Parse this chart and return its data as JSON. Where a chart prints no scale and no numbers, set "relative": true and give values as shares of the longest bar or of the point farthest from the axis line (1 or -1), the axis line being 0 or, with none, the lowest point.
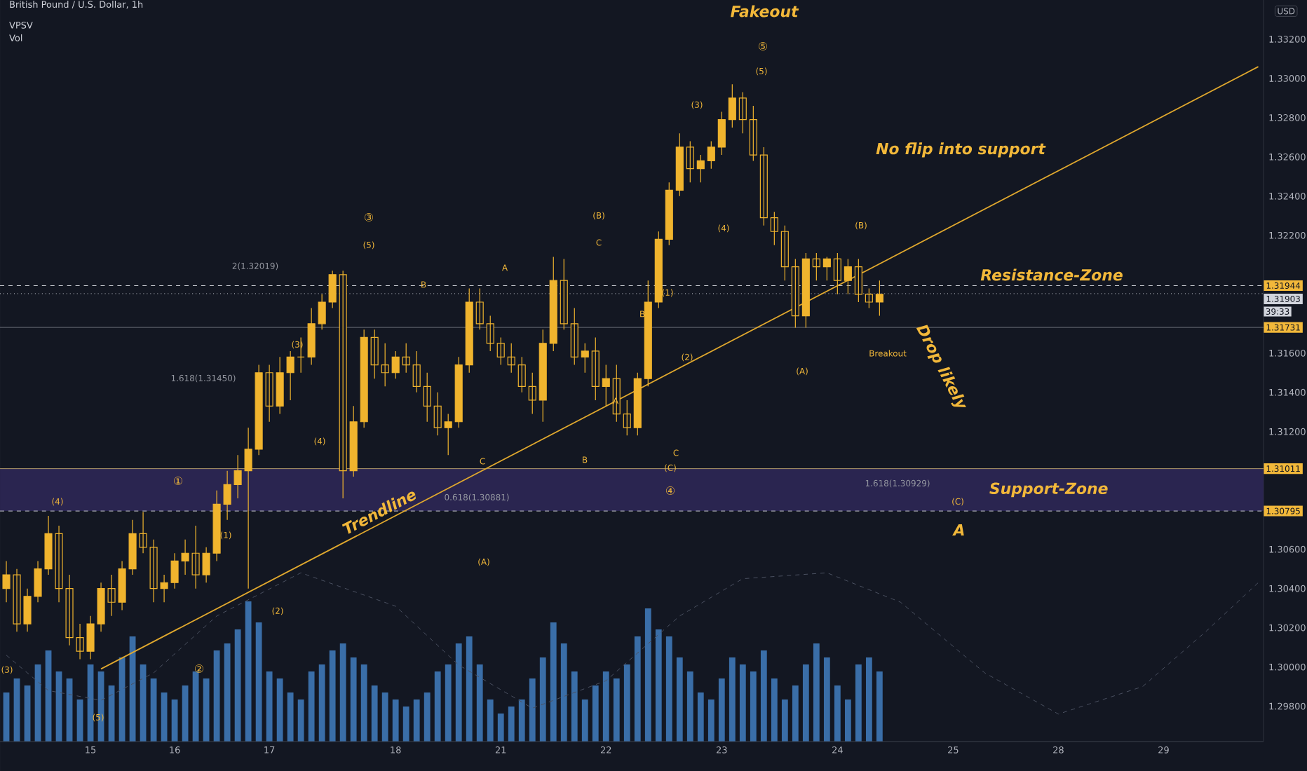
{
  "chart_data": [
    {
      "type": "candlestick",
      "title": "British Pound / U.S. Dollar, 1h",
      "ylabel": "USD",
      "color": "#f0b42e",
      "categories": [
        null,
        null,
        null,
        null,
        null,
        null,
        null,
        null,
        "15",
        null,
        null,
        null,
        null,
        null,
        null,
        null,
        "16",
        null,
        null,
        null,
        null,
        null,
        null,
        null,
        null,
        "17",
        null,
        null,
        null,
        null,
        null,
        null,
        null,
        null,
        null,
        null,
        null,
        "18",
        null,
        null,
        null,
        null,
        null,
        null,
        null,
        null,
        null,
        "21",
        null,
        null,
        null,
        null,
        null,
        null,
        null,
        null,
        null,
        "22",
        null,
        null,
        null,
        null,
        null,
        null,
        null,
        null,
        null,
        null,
        "23",
        null,
        null,
        null,
        null,
        null,
        null,
        null,
        null,
        null,
        null,
        "24",
        null,
        null,
        null,
        null,
        null,
        null,
        null,
        null,
        null,
        null,
        "25",
        null,
        null,
        null,
        null,
        null,
        null,
        null,
        null,
        null,
        "28",
        null,
        null,
        null,
        null,
        null,
        null,
        null,
        null,
        null,
        "29",
        null,
        null,
        null,
        null,
        null,
        null,
        null,
        null,
        null
      ],
      "ohlc": [
        [
          1.304,
          1.3054,
          1.3033,
          1.3047
        ],
        [
          1.3047,
          1.305,
          1.3018,
          1.3022
        ],
        [
          1.3022,
          1.304,
          1.3018,
          1.3036
        ],
        [
          1.3036,
          1.3054,
          1.3033,
          1.305
        ],
        [
          1.305,
          1.3077,
          1.3047,
          1.3068
        ],
        [
          1.3068,
          1.3072,
          1.3033,
          1.304
        ],
        [
          1.304,
          1.3047,
          1.3011,
          1.3015
        ],
        [
          1.3015,
          1.3022,
          1.3004,
          1.3008
        ],
        [
          1.3008,
          1.3026,
          1.3004,
          1.3022
        ],
        [
          1.3022,
          1.3043,
          1.3018,
          1.304
        ],
        [
          1.304,
          1.3047,
          1.3026,
          1.3033
        ],
        [
          1.3033,
          1.3054,
          1.3029,
          1.305
        ],
        [
          1.305,
          1.3075,
          1.3047,
          1.3068
        ],
        [
          1.3068,
          1.3079,
          1.3058,
          1.3061
        ],
        [
          1.3061,
          1.3065,
          1.3033,
          1.304
        ],
        [
          1.304,
          1.3047,
          1.3033,
          1.3043
        ],
        [
          1.3043,
          1.3058,
          1.304,
          1.3054
        ],
        [
          1.3054,
          1.3065,
          1.3047,
          1.3058
        ],
        [
          1.3058,
          1.3072,
          1.304,
          1.3047
        ],
        [
          1.3047,
          1.3061,
          1.3043,
          1.3058
        ],
        [
          1.3058,
          1.309,
          1.3054,
          1.3083
        ],
        [
          1.3083,
          1.31,
          1.3075,
          1.3093
        ],
        [
          1.3093,
          1.3108,
          1.3086,
          1.31
        ],
        [
          1.31,
          1.3122,
          1.304,
          1.3111
        ],
        [
          1.3111,
          1.3154,
          1.3108,
          1.315
        ],
        [
          1.315,
          1.3154,
          1.3125,
          1.3133
        ],
        [
          1.3133,
          1.3158,
          1.3129,
          1.315
        ],
        [
          1.315,
          1.3161,
          1.3136,
          1.3158
        ],
        [
          1.3158,
          1.3168,
          1.315,
          1.3158
        ],
        [
          1.3158,
          1.3183,
          1.3154,
          1.3175
        ],
        [
          1.3175,
          1.319,
          1.3172,
          1.3186
        ],
        [
          1.3186,
          1.3202,
          1.3183,
          1.32
        ],
        [
          1.32,
          1.3202,
          1.3086,
          1.31
        ],
        [
          1.31,
          1.3133,
          1.3097,
          1.3125
        ],
        [
          1.3125,
          1.3172,
          1.3122,
          1.3168
        ],
        [
          1.3168,
          1.3172,
          1.3147,
          1.3154
        ],
        [
          1.3154,
          1.3165,
          1.3143,
          1.315
        ],
        [
          1.315,
          1.3161,
          1.3147,
          1.3158
        ],
        [
          1.3158,
          1.3165,
          1.315,
          1.3154
        ],
        [
          1.3154,
          1.3161,
          1.314,
          1.3143
        ],
        [
          1.3143,
          1.315,
          1.3125,
          1.3133
        ],
        [
          1.3133,
          1.314,
          1.3118,
          1.3122
        ],
        [
          1.3122,
          1.3129,
          1.3108,
          1.3125
        ],
        [
          1.3125,
          1.3158,
          1.3122,
          1.3154
        ],
        [
          1.3154,
          1.3193,
          1.315,
          1.3186
        ],
        [
          1.3186,
          1.3193,
          1.3172,
          1.3175
        ],
        [
          1.3175,
          1.3179,
          1.3161,
          1.3165
        ],
        [
          1.3165,
          1.3168,
          1.3154,
          1.3158
        ],
        [
          1.3158,
          1.3165,
          1.315,
          1.3154
        ],
        [
          1.3154,
          1.3158,
          1.314,
          1.3143
        ],
        [
          1.3143,
          1.315,
          1.3129,
          1.3136
        ],
        [
          1.3136,
          1.3172,
          1.3125,
          1.3165
        ],
        [
          1.3165,
          1.3209,
          1.3161,
          1.3197
        ],
        [
          1.3197,
          1.3208,
          1.3172,
          1.3175
        ],
        [
          1.3175,
          1.3183,
          1.3154,
          1.3158
        ],
        [
          1.3158,
          1.3165,
          1.315,
          1.3161
        ],
        [
          1.3161,
          1.3168,
          1.3136,
          1.3143
        ],
        [
          1.3143,
          1.3154,
          1.3133,
          1.3147
        ],
        [
          1.3147,
          1.3154,
          1.3125,
          1.3129
        ],
        [
          1.3129,
          1.3136,
          1.3118,
          1.3122
        ],
        [
          1.3122,
          1.315,
          1.3118,
          1.3147
        ],
        [
          1.3147,
          1.3197,
          1.3143,
          1.3186
        ],
        [
          1.3186,
          1.3222,
          1.3183,
          1.3218
        ],
        [
          1.3218,
          1.3247,
          1.3215,
          1.3243
        ],
        [
          1.3243,
          1.3272,
          1.324,
          1.3265
        ],
        [
          1.3265,
          1.3268,
          1.3247,
          1.3254
        ],
        [
          1.3254,
          1.3261,
          1.3247,
          1.3258
        ],
        [
          1.3258,
          1.3268,
          1.3254,
          1.3265
        ],
        [
          1.3265,
          1.3283,
          1.3261,
          1.3279
        ],
        [
          1.3279,
          1.3297,
          1.3275,
          1.329
        ],
        [
          1.329,
          1.3293,
          1.3272,
          1.3279
        ],
        [
          1.3279,
          1.3286,
          1.3258,
          1.3261
        ],
        [
          1.3261,
          1.3265,
          1.3225,
          1.3229
        ],
        [
          1.3229,
          1.3232,
          1.3215,
          1.3222
        ],
        [
          1.3222,
          1.3225,
          1.3197,
          1.3204
        ],
        [
          1.3204,
          1.3208,
          1.3173,
          1.3179
        ],
        [
          1.3179,
          1.3211,
          1.3173,
          1.3208
        ],
        [
          1.3208,
          1.3211,
          1.3197,
          1.3204
        ],
        [
          1.3204,
          1.3209,
          1.3197,
          1.3208
        ],
        [
          1.3208,
          1.3211,
          1.319,
          1.3197
        ],
        [
          1.3197,
          1.3208,
          1.319,
          1.3204
        ],
        [
          1.3204,
          1.3208,
          1.3186,
          1.319
        ],
        [
          1.319,
          1.3193,
          1.3183,
          1.3186
        ],
        [
          1.3186,
          1.3197,
          1.3179,
          1.319
        ],
        null,
        null,
        null,
        null,
        null,
        null,
        null,
        null,
        null,
        null,
        null,
        null,
        null,
        null,
        null,
        null,
        null,
        null,
        null,
        null,
        null,
        null,
        null,
        null,
        null,
        null,
        null,
        null,
        null,
        null,
        null,
        null,
        null,
        null,
        null,
        null
      ],
      "ylim": [
        1.2962,
        1.334
      ],
      "yticks": [
        {
          "value": 1.298,
          "label": "1.29800"
        },
        {
          "value": 1.3,
          "label": "1.30000"
        },
        {
          "value": 1.302,
          "label": "1.30200"
        },
        {
          "value": 1.304,
          "label": "1.30400"
        },
        {
          "value": 1.306,
          "label": "1.30600"
        },
        {
          "value": 1.312,
          "label": "1.31200"
        },
        {
          "value": 1.314,
          "label": "1.31400"
        },
        {
          "value": 1.316,
          "label": "1.31600"
        },
        {
          "value": 1.322,
          "label": "1.32200"
        },
        {
          "value": 1.324,
          "label": "1.32400"
        },
        {
          "value": 1.326,
          "label": "1.32600"
        },
        {
          "value": 1.328,
          "label": "1.32800"
        },
        {
          "value": 1.33,
          "label": "1.33000"
        },
        {
          "value": 1.332,
          "label": "1.33200"
        }
      ],
      "series": [
        {
          "type": "line",
          "name": "Trendline",
          "color": "#e0a82e",
          "values": [
            null,
            null,
            null,
            null,
            null,
            null,
            null,
            null,
            null,
            1.2999,
            null,
            null,
            null,
            null,
            null,
            null,
            null,
            null,
            null,
            null,
            null,
            null,
            null,
            null,
            null,
            null,
            null,
            null,
            null,
            null,
            null,
            null,
            null,
            null,
            null,
            null,
            null,
            null,
            null,
            null,
            null,
            null,
            null,
            null,
            null,
            null,
            null,
            null,
            null,
            null,
            null,
            null,
            null,
            null,
            null,
            null,
            null,
            null,
            null,
            null,
            null,
            null,
            null,
            null,
            null,
            null,
            null,
            null,
            null,
            null,
            null,
            null,
            null,
            null,
            null,
            null,
            null,
            null,
            null,
            null,
            null,
            null,
            null,
            null,
            null,
            null,
            null,
            null,
            null,
            null,
            null,
            null,
            null,
            null,
            null,
            null,
            null,
            null,
            null,
            null,
            null,
            null,
            null,
            null,
            null,
            null,
            null,
            null,
            null,
            null,
            null,
            null,
            null,
            null,
            null,
            null,
            null,
            null,
            null,
            1.3306
          ]
        },
        {
          "type": "line",
          "line_style": "dashed",
          "color": "#4a5060",
          "values": [
            1.3006,
            null,
            null,
            null,
            1.2988,
            null,
            null,
            null,
            null,
            1.2983,
            null,
            null,
            null,
            null,
            1.2997,
            null,
            null,
            null,
            null,
            null,
            1.3026,
            null,
            null,
            null,
            null,
            null,
            null,
            null,
            1.3048,
            null,
            null,
            null,
            null,
            null,
            null,
            null,
            null,
            1.3031,
            null,
            null,
            null,
            null,
            null,
            1.3001,
            null,
            null,
            null,
            null,
            null,
            null,
            1.2979,
            null,
            null,
            null,
            null,
            null,
            null,
            1.2993,
            null,
            null,
            null,
            null,
            null,
            null,
            1.3026,
            null,
            null,
            null,
            null,
            null,
            1.3045,
            null,
            null,
            null,
            null,
            null,
            null,
            null,
            1.3048,
            null,
            null,
            null,
            null,
            null,
            null,
            1.3033,
            null,
            null,
            null,
            null,
            null,
            null,
            null,
            1.2997,
            null,
            null,
            null,
            null,
            null,
            null,
            1.2976,
            null,
            null,
            null,
            null,
            null,
            null,
            null,
            1.299,
            null,
            null,
            null,
            null,
            null,
            1.3018,
            null,
            null,
            null,
            null,
            1.3043
          ]
        }
      ],
      "bands": [
        {
          "axis": "y",
          "from": 1.30795,
          "to": 1.31011,
          "label": "Support-Zone",
          "color": "#2a2550"
        }
      ],
      "ref_lines": [
        {
          "axis": "y",
          "value": 1.31944,
          "label": "1.31944",
          "color": "#c8cad0",
          "line_style": "dashed"
        },
        {
          "axis": "y",
          "value": 1.31903,
          "label": "1.31903",
          "color": "#d1d4dc",
          "line_style": "dotted"
        },
        {
          "axis": "y",
          "value": 1.31731,
          "label": "1.31731",
          "color": "#6a6e78",
          "line_style": "solid"
        },
        {
          "axis": "y",
          "value": 1.31011,
          "label": "1.31011",
          "color": "#b09a6a",
          "line_style": "solid"
        },
        {
          "axis": "y",
          "value": 1.30795,
          "label": "1.30795",
          "color": "#c8cad0",
          "line_style": "dashed"
        }
      ],
      "annotations": [
        "VPSV",
        "Vol",
        "Fakeout",
        "No flip into support",
        "Resistance-Zone",
        "A",
        "Drop likely",
        "Breakout",
        "(C)",
        "39:33",
        "2(1.32019)",
        "1.618(1.31450)",
        "0.618(1.30881)",
        "1.618(1.30929)",
        "(4)",
        "①",
        "(1)",
        "(3)",
        "(5)",
        "②",
        "(2)",
        "(3)",
        "(4)",
        "③",
        "(5)",
        "B",
        "A",
        "C",
        "(A)",
        "B",
        "(B)",
        "C",
        "B",
        "A",
        "(1)",
        "(2)",
        "C",
        "(C)",
        "④",
        "(3)",
        "(4)",
        "(5)",
        "⑤",
        "(A)",
        "(B)"
      ]
    },
    {
      "type": "bar",
      "relative": true,
      "color": "#3a6ea8",
      "categories": [
        null,
        null,
        null,
        null,
        null,
        null,
        null,
        null,
        null,
        null,
        null,
        null,
        null,
        null,
        null,
        null,
        null,
        null,
        null,
        null,
        null,
        null,
        null,
        null,
        null,
        null,
        null,
        null,
        null,
        null,
        null,
        null,
        null,
        null,
        null,
        null,
        null,
        null,
        null,
        null,
        null,
        null,
        null,
        null,
        null,
        null,
        null,
        null,
        null,
        null,
        null,
        null,
        null,
        null,
        null,
        null,
        null,
        null,
        null,
        null,
        null,
        null,
        null,
        null,
        null,
        null,
        null,
        null,
        null,
        null,
        null,
        null,
        null,
        null,
        null,
        null,
        null,
        null,
        null,
        null,
        null,
        null,
        null,
        null
      ],
      "values": [
        0.35,
        0.45,
        0.4,
        0.55,
        0.65,
        0.5,
        0.45,
        0.3,
        0.55,
        0.5,
        0.4,
        0.6,
        0.75,
        0.55,
        0.45,
        0.35,
        0.3,
        0.4,
        0.5,
        0.45,
        0.65,
        0.7,
        0.8,
        1.0,
        0.85,
        0.5,
        0.45,
        0.35,
        0.3,
        0.5,
        0.55,
        0.65,
        0.7,
        0.6,
        0.55,
        0.4,
        0.35,
        0.3,
        0.25,
        0.3,
        0.35,
        0.5,
        0.55,
        0.7,
        0.75,
        0.55,
        0.3,
        0.2,
        0.25,
        0.3,
        0.45,
        0.6,
        0.85,
        0.7,
        0.5,
        0.3,
        0.4,
        0.5,
        0.45,
        0.55,
        0.75,
        0.95,
        0.8,
        0.75,
        0.6,
        0.5,
        0.35,
        0.3,
        0.45,
        0.6,
        0.55,
        0.5,
        0.65,
        0.45,
        0.3,
        0.4,
        0.55,
        0.7,
        0.6,
        0.4,
        0.3,
        0.55,
        0.6,
        0.5
      ]
    }
  ]
}
